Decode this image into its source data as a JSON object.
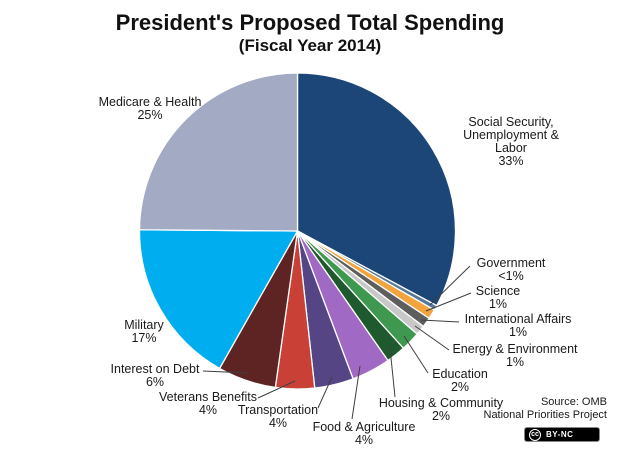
{
  "title": "President's Proposed Total Spending",
  "subtitle": "(Fiscal Year 2014)",
  "source": {
    "line1": "Source: OMB",
    "line2": "National Priorities Project"
  },
  "badge": {
    "cc": "cc",
    "label": "BY-NC"
  },
  "chart_data": {
    "type": "pie",
    "title": "President's Proposed Total Spending",
    "subtitle": "(Fiscal Year 2014)",
    "start_angle": "12 o'clock",
    "direction": "clockwise",
    "legend_position": "labels around pie with leader lines",
    "slices": [
      {
        "label": "Social Security, Unemployment & Labor",
        "pct_label": "33%",
        "value": 33,
        "color": "#1C4677"
      },
      {
        "label": "Government",
        "pct_label": "<1%",
        "value": 0.5,
        "color": "#567899"
      },
      {
        "label": "Science",
        "pct_label": "1%",
        "value": 1,
        "color": "#F2A33C"
      },
      {
        "label": "International Affairs",
        "pct_label": "1%",
        "value": 1,
        "color": "#5E5E5E"
      },
      {
        "label": "Energy & Environment",
        "pct_label": "1%",
        "value": 1,
        "color": "#C8C8C8"
      },
      {
        "label": "Education",
        "pct_label": "2%",
        "value": 2,
        "color": "#3F9850"
      },
      {
        "label": "Housing & Community",
        "pct_label": "2%",
        "value": 2,
        "color": "#1E5A2E"
      },
      {
        "label": "Food & Agriculture",
        "pct_label": "4%",
        "value": 4,
        "color": "#A069C4"
      },
      {
        "label": "Transportation",
        "pct_label": "4%",
        "value": 4,
        "color": "#564584"
      },
      {
        "label": "Veterans Benefits",
        "pct_label": "4%",
        "value": 4,
        "color": "#C94036"
      },
      {
        "label": "Interest on Debt",
        "pct_label": "6%",
        "value": 6,
        "color": "#5E2424"
      },
      {
        "label": "Military",
        "pct_label": "17%",
        "value": 17,
        "color": "#00AEEF"
      },
      {
        "label": "Medicare & Health",
        "pct_label": "25%",
        "value": 25,
        "color": "#A3ABC4"
      }
    ]
  }
}
